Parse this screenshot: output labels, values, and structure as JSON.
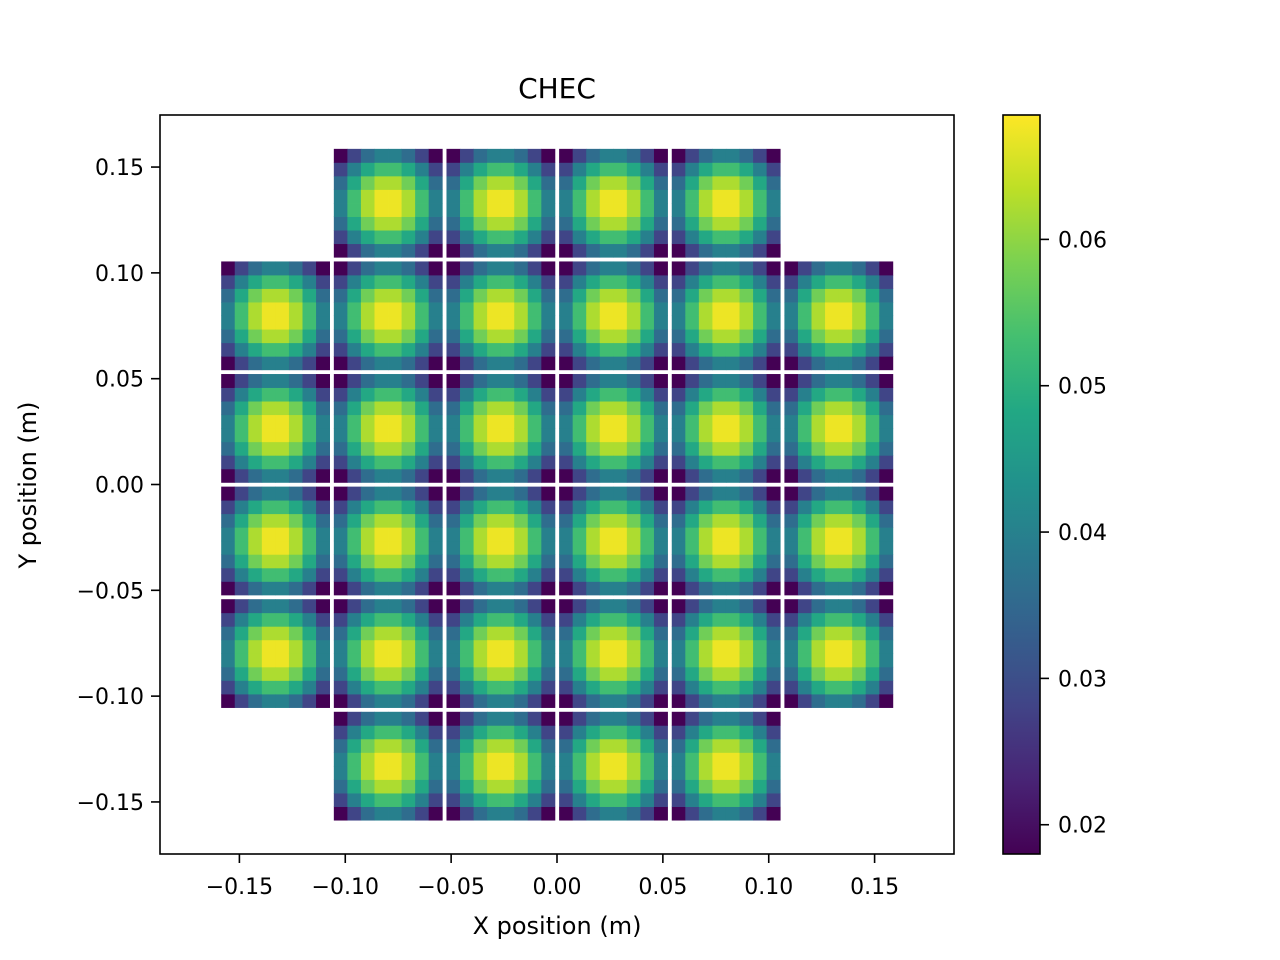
{
  "chart_data": {
    "type": "heatmap",
    "title": "CHEC",
    "xlabel": "X position (m)",
    "ylabel": "Y position (m)",
    "xlim": [
      -0.1875,
      0.1875
    ],
    "ylim": [
      -0.1746,
      0.1746
    ],
    "xticks": [
      -0.15,
      -0.1,
      -0.05,
      0.0,
      0.05,
      0.1,
      0.15
    ],
    "xtick_labels": [
      "−0.15",
      "−0.10",
      "−0.05",
      "0.00",
      "0.05",
      "0.10",
      "0.15"
    ],
    "yticks": [
      -0.15,
      -0.1,
      -0.05,
      0.0,
      0.05,
      0.1,
      0.15
    ],
    "ytick_labels": [
      "−0.15",
      "−0.10",
      "−0.05",
      "0.00",
      "0.05",
      "0.10",
      "0.15"
    ],
    "grid": false,
    "colormap": "viridis",
    "colorbar": {
      "vmin": 0.018,
      "vmax": 0.0685,
      "ticks": [
        0.02,
        0.03,
        0.04,
        0.05,
        0.06
      ],
      "tick_labels": [
        "0.02",
        "0.03",
        "0.04",
        "0.05",
        "0.06"
      ]
    },
    "camera": {
      "module_pitch": 0.0532,
      "module_size": 0.0512,
      "pixels_per_module_side": 8,
      "pixel_pitch": 0.0064,
      "module_columns_by_row": [
        [
          -1.5,
          -0.5,
          0.5,
          1.5
        ],
        [
          -2.5,
          -1.5,
          -0.5,
          0.5,
          1.5,
          2.5
        ],
        [
          -2.5,
          -1.5,
          -0.5,
          0.5,
          1.5,
          2.5
        ],
        [
          -2.5,
          -1.5,
          -0.5,
          0.5,
          1.5,
          2.5
        ],
        [
          -2.5,
          -1.5,
          -0.5,
          0.5,
          1.5,
          2.5
        ],
        [
          -1.5,
          -0.5,
          0.5,
          1.5
        ]
      ],
      "module_row_offsets": [
        2.5,
        1.5,
        0.5,
        -0.5,
        -1.5,
        -2.5
      ],
      "pixel_value_model": {
        "description": "pixel value peaks at module centre, lowest at module corners",
        "peak": 0.0685,
        "corner": 0.018
      }
    }
  }
}
